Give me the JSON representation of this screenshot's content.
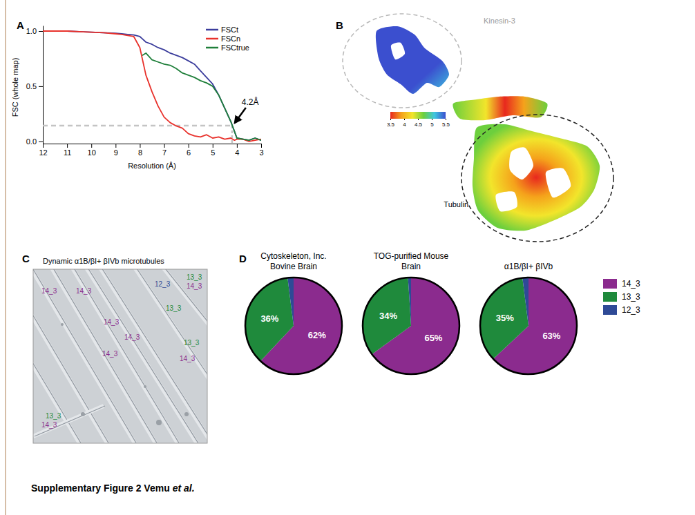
{
  "panel_letters": [
    "A",
    "B",
    "C",
    "D"
  ],
  "chart_data": [
    {
      "type": "line",
      "x_label": "Resolution (Å)",
      "y_label": "FSC (whole map)",
      "x": [
        12,
        11.5,
        11,
        10.5,
        10,
        9.5,
        9,
        8.75,
        8.5,
        8.25,
        8,
        7.9,
        7.75,
        7.5,
        7.25,
        7,
        6.75,
        6.5,
        6.25,
        6,
        5.75,
        5.5,
        5.25,
        5,
        4.75,
        4.5,
        4.25,
        4.1,
        4,
        3.75,
        3.5,
        3.25,
        3
      ],
      "xlim": [
        12,
        3
      ],
      "xticks": [
        12,
        11,
        10,
        9,
        8,
        7,
        6,
        5,
        4,
        3
      ],
      "ylim": [
        -0.02,
        1.05
      ],
      "yticks": [
        {
          "value": 0,
          "label": "0.0"
        },
        {
          "value": 0.5,
          "label": "0.5"
        },
        {
          "value": 1,
          "label": "1.0"
        }
      ],
      "legend": "upper right",
      "series": [
        {
          "name": "FSCt",
          "color": "#3b3d9c",
          "values": [
            1.0,
            1.0,
            1.0,
            0.995,
            0.99,
            0.985,
            0.98,
            0.975,
            0.97,
            0.965,
            0.95,
            0.93,
            0.9,
            0.88,
            0.85,
            0.83,
            0.8,
            0.78,
            0.76,
            0.73,
            0.7,
            0.64,
            0.58,
            0.52,
            0.42,
            0.3,
            0.18,
            0.09,
            0.03,
            0.02,
            0.01,
            0.03,
            0.01
          ]
        },
        {
          "name": "FSCn",
          "color": "#e8312b",
          "values": [
            1.0,
            1.0,
            1.0,
            0.995,
            0.99,
            0.985,
            0.975,
            0.97,
            0.96,
            0.95,
            0.85,
            0.75,
            0.6,
            0.45,
            0.32,
            0.22,
            0.17,
            0.14,
            0.12,
            0.07,
            0.05,
            0.04,
            0.06,
            0.03,
            0.04,
            0.02,
            0.03,
            0.01,
            0.02,
            0.02,
            0.0,
            0.01,
            0.02
          ]
        },
        {
          "name": "FSCtrue",
          "color": "#1f7f3a",
          "values": [
            null,
            null,
            null,
            null,
            null,
            null,
            null,
            null,
            null,
            null,
            null,
            0.78,
            0.8,
            0.74,
            0.72,
            0.7,
            0.69,
            0.66,
            0.62,
            0.6,
            0.58,
            0.55,
            0.53,
            0.5,
            0.42,
            0.3,
            0.18,
            0.09,
            0.03,
            0.02,
            0.01,
            0.03,
            0.01
          ]
        }
      ],
      "threshold": 0.143,
      "annotation": {
        "label": "4.2Å",
        "value": 4.2
      }
    },
    {
      "type": "pie",
      "categories": [
        "14_3",
        "13_3",
        "12_3"
      ],
      "colors": [
        "#8b2b8e",
        "#1f8a3c",
        "#2e4a96"
      ],
      "data_labels": true,
      "legend": "right",
      "series": [
        {
          "name": "Cytoskeleton, Inc. Bovine Brain",
          "values": [
            62,
            36,
            2
          ],
          "value_labels": [
            "62%",
            "36%",
            null
          ]
        },
        {
          "name": "TOG-purified Mouse Brain",
          "values": [
            65,
            34,
            1
          ],
          "value_labels": [
            "65%",
            "34%",
            null
          ]
        },
        {
          "name": "α1B/βI+ βIVb",
          "values": [
            63,
            35,
            2
          ],
          "value_labels": [
            "63%",
            "35%",
            null
          ]
        }
      ]
    }
  ],
  "density_map": {
    "labels": [
      "Kinesin-3",
      "Tubulin"
    ],
    "colorbar": {
      "range": [
        3.5,
        5.5
      ],
      "ticks": [
        3.5,
        4,
        4.5,
        5,
        5.5
      ],
      "colors": [
        "#e8281e",
        "#f5a21b",
        "#f2e52b",
        "#6ccf3d",
        "#3ec6e0",
        "#3b4fcf"
      ]
    }
  },
  "micrograph": {
    "title": "Dynamic α1B/βI+ βIVb microtubules",
    "labels": [
      "12_3",
      "13_3",
      "14_3",
      "14_3",
      "14_3",
      "13_3",
      "14_3",
      "14_3",
      "13_3",
      "14_3",
      "14_3",
      "13_3",
      "14_3"
    ]
  },
  "footer": {
    "main": "Supplementary Figure 2 Vemu",
    "italic": "et al."
  }
}
